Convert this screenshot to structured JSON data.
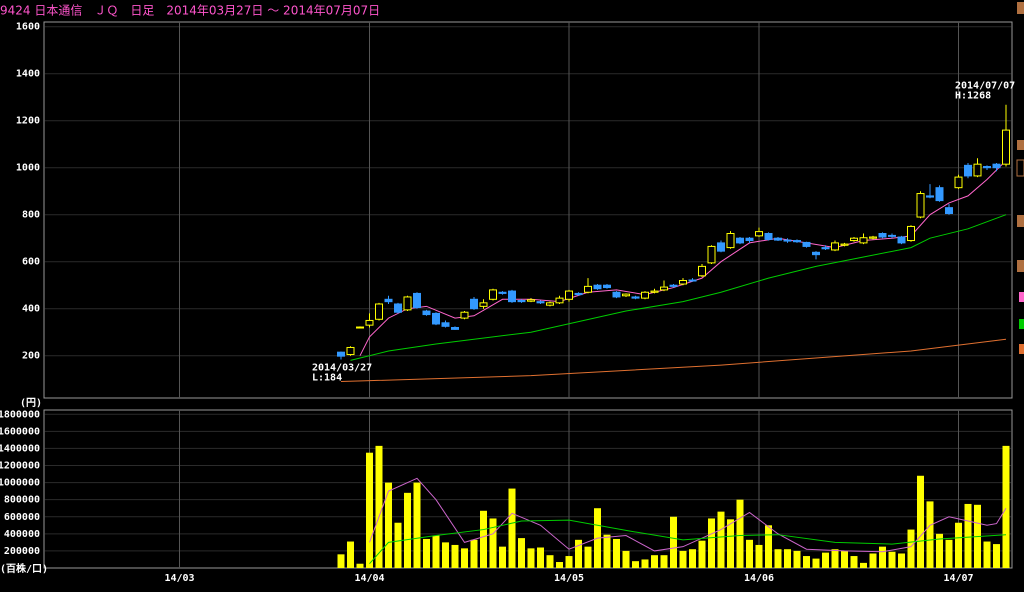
{
  "chart_data": [
    {
      "type": "candlestick",
      "title": "9424 日本通信　ＪＱ　日足　2014年03月27日 ～ 2014年07月07日",
      "open": [
        215,
        205,
        320,
        330,
        355,
        440,
        420,
        395,
        465,
        390,
        380,
        340,
        320,
        360,
        440,
        410,
        440,
        470,
        475,
        435,
        432,
        430,
        415,
        425,
        440,
        465,
        470,
        500,
        500,
        470,
        455,
        450,
        445,
        470,
        480,
        500,
        505,
        522,
        540,
        595,
        680,
        660,
        700,
        700,
        710,
        720,
        700,
        692,
        690,
        682,
        640,
        660,
        650,
        670,
        690,
        680,
        700,
        720,
        712,
        705,
        690,
        790,
        880,
        915,
        830,
        915,
        1010,
        965,
        1005,
        1015,
        1015
      ],
      "high": [
        218,
        240,
        325,
        380,
        425,
        455,
        425,
        455,
        470,
        395,
        385,
        350,
        325,
        390,
        450,
        440,
        485,
        475,
        480,
        440,
        445,
        435,
        430,
        455,
        480,
        470,
        530,
        505,
        505,
        475,
        465,
        455,
        475,
        485,
        520,
        505,
        530,
        530,
        590,
        670,
        690,
        730,
        705,
        705,
        745,
        725,
        705,
        700,
        695,
        685,
        645,
        670,
        690,
        680,
        705,
        720,
        710,
        725,
        720,
        710,
        755,
        900,
        930,
        925,
        845,
        970,
        1020,
        1040,
        1010,
        1020,
        1268
      ],
      "low": [
        184,
        200,
        318,
        320,
        350,
        420,
        380,
        390,
        400,
        370,
        330,
        320,
        310,
        355,
        395,
        400,
        435,
        460,
        425,
        425,
        428,
        420,
        410,
        420,
        430,
        455,
        465,
        480,
        485,
        445,
        450,
        440,
        440,
        465,
        475,
        490,
        500,
        515,
        535,
        590,
        640,
        655,
        675,
        680,
        705,
        690,
        688,
        680,
        680,
        660,
        610,
        650,
        645,
        665,
        685,
        675,
        695,
        700,
        700,
        675,
        685,
        785,
        870,
        855,
        800,
        910,
        955,
        960,
        990,
        985,
        1005
      ],
      "close": [
        198,
        235,
        322,
        350,
        420,
        430,
        385,
        450,
        405,
        375,
        335,
        325,
        312,
        385,
        400,
        425,
        480,
        465,
        430,
        430,
        438,
        425,
        425,
        445,
        475,
        460,
        495,
        485,
        490,
        450,
        462,
        445,
        470,
        475,
        492,
        495,
        520,
        518,
        580,
        665,
        645,
        720,
        680,
        690,
        728,
        695,
        692,
        688,
        685,
        665,
        630,
        655,
        680,
        675,
        700,
        702,
        705,
        705,
        708,
        680,
        750,
        890,
        875,
        860,
        805,
        960,
        965,
        1015,
        1000,
        1000,
        1160
      ],
      "up_color": "#ffff00",
      "down_color": "#3399ff",
      "lines": [
        {
          "color": "#ff66cc",
          "x": [
            2,
            3,
            5,
            7,
            9,
            12,
            14,
            17,
            20,
            23,
            26,
            29,
            32,
            35,
            38,
            40,
            43,
            46,
            49,
            52,
            55,
            58,
            60,
            62,
            64,
            66,
            68,
            70
          ],
          "values": [
            200,
            280,
            360,
            400,
            410,
            360,
            370,
            440,
            440,
            430,
            470,
            480,
            460,
            490,
            530,
            600,
            680,
            700,
            680,
            660,
            690,
            700,
            710,
            800,
            850,
            880,
            950,
            1030
          ]
        },
        {
          "color": "#00cc00",
          "x": [
            1,
            5,
            10,
            20,
            30,
            36,
            40,
            45,
            50,
            55,
            60,
            62,
            66,
            70
          ],
          "values": [
            180,
            220,
            250,
            300,
            390,
            430,
            470,
            530,
            580,
            620,
            660,
            700,
            740,
            800
          ]
        },
        {
          "color": "#e07030",
          "x": [
            0,
            20,
            40,
            60,
            70
          ],
          "values": [
            90,
            115,
            160,
            220,
            270
          ]
        }
      ],
      "ylim": [
        20,
        1620
      ],
      "yticks": [
        200,
        400,
        600,
        800,
        1000,
        1200,
        1400,
        1600
      ],
      "y_unit": "(円)",
      "annotations": [
        {
          "date": "2014/03/27",
          "label": "L:184"
        },
        {
          "date": "2014/07/07",
          "label": "H:1268"
        }
      ]
    },
    {
      "type": "bar",
      "values": [
        160000,
        310000,
        50000,
        1350000,
        1430000,
        1000000,
        530000,
        880000,
        1000000,
        340000,
        380000,
        300000,
        270000,
        230000,
        330000,
        670000,
        580000,
        250000,
        930000,
        350000,
        230000,
        240000,
        150000,
        70000,
        140000,
        330000,
        250000,
        700000,
        390000,
        340000,
        200000,
        80000,
        100000,
        150000,
        150000,
        600000,
        200000,
        220000,
        320000,
        580000,
        660000,
        570000,
        800000,
        330000,
        270000,
        500000,
        220000,
        220000,
        200000,
        140000,
        110000,
        180000,
        220000,
        200000,
        140000,
        60000,
        170000,
        250000,
        190000,
        170000,
        450000,
        1080000,
        780000,
        400000,
        330000,
        530000,
        750000,
        740000,
        310000,
        280000,
        1430000
      ],
      "color": "#ffff00",
      "lines": [
        {
          "color": "#cc66cc",
          "x": [
            3,
            5,
            8,
            10,
            13,
            16,
            18,
            21,
            24,
            27,
            30,
            33,
            36,
            40,
            43,
            46,
            49,
            53,
            57,
            60,
            62,
            64,
            66,
            68,
            69,
            70
          ],
          "values": [
            300000,
            900000,
            1050000,
            800000,
            300000,
            400000,
            640000,
            500000,
            220000,
            350000,
            380000,
            200000,
            250000,
            450000,
            650000,
            400000,
            220000,
            200000,
            190000,
            250000,
            500000,
            600000,
            550000,
            500000,
            520000,
            700000
          ]
        },
        {
          "color": "#00cc00",
          "x": [
            3,
            5,
            10,
            15,
            19,
            24,
            30,
            36,
            42,
            46,
            52,
            58,
            63,
            70
          ],
          "values": [
            50000,
            300000,
            380000,
            450000,
            550000,
            560000,
            440000,
            330000,
            380000,
            390000,
            300000,
            280000,
            340000,
            390000
          ]
        }
      ],
      "ylim": [
        0,
        1850000
      ],
      "yticks": [
        200000,
        400000,
        600000,
        800000,
        1000000,
        1200000,
        1400000,
        1600000,
        1800000
      ],
      "y_unit": "(百株/口)",
      "xticks": [
        {
          "value": -17,
          "label": "14/03"
        },
        {
          "value": 3,
          "label": "14/04"
        },
        {
          "value": 24,
          "label": "14/05"
        },
        {
          "value": 44,
          "label": "14/06"
        },
        {
          "value": 65,
          "label": "14/07"
        }
      ]
    }
  ]
}
